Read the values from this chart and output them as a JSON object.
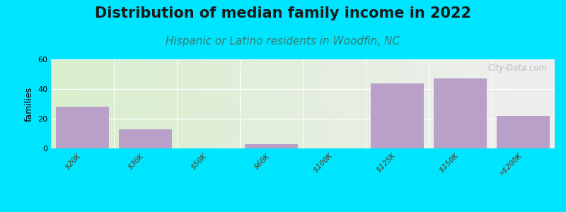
{
  "title": "Distribution of median family income in 2022",
  "subtitle": "Hispanic or Latino residents in Woodfin, NC",
  "categories": [
    "$20K",
    "$30K",
    "$50K",
    "$60K",
    "$100K",
    "$125K",
    "$150K",
    ">$200K"
  ],
  "values": [
    28,
    13,
    0,
    3,
    0,
    44,
    47,
    22
  ],
  "bar_color": "#b8a0c8",
  "background_outer": "#00e5ff",
  "background_inner_left": "#d8eecc",
  "background_inner_right": "#f0eef0",
  "ylabel": "families",
  "ylim": [
    0,
    60
  ],
  "yticks": [
    0,
    20,
    40,
    60
  ],
  "watermark": "City-Data.com",
  "title_fontsize": 15,
  "subtitle_fontsize": 11,
  "tick_fontsize": 8,
  "ylabel_fontsize": 9,
  "title_color": "#1a1a1a",
  "subtitle_color": "#3a7a6a",
  "tick_color": "#5a3a1a"
}
